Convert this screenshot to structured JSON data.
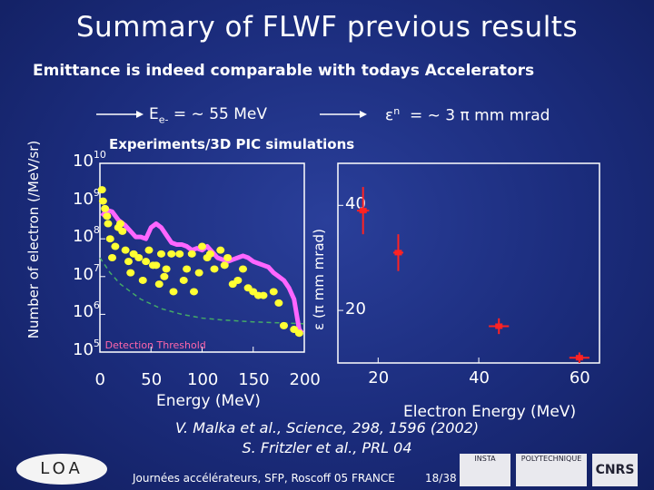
{
  "slide": {
    "title": "Summary of FLWF previous results",
    "subtitle": "Emittance is indeed comparable with todays Accelerators"
  },
  "annotations": {
    "energy_label": "E",
    "energy_sub": "e-",
    "energy_value": "= ~ 55 MeV",
    "emittance_symbol": "ε",
    "emittance_sup": "n",
    "emittance_value": "= ~ 3 π mm mrad"
  },
  "left_plot": {
    "header": "Experiments/3D PIC simulations",
    "ylabel": "Number of electron (/MeV/sr)",
    "xlabel": "Energy (MeV)",
    "y_tick_base": "10",
    "y_exponents": [
      "10",
      "9",
      "8",
      "7",
      "6",
      "5"
    ],
    "x_ticks": [
      "0",
      "50",
      "100",
      "150",
      "200"
    ],
    "threshold_label": "Detection Threshold",
    "colors": {
      "simulation": "#ff66ff",
      "experiment": "#ffff33",
      "threshold": "#44aa66",
      "frame": "#ffffff"
    }
  },
  "right_plot": {
    "ylabel": "ε (π mm mrad)",
    "xlabel": "Electron Energy (MeV)",
    "y_ticks": [
      "40",
      "20"
    ],
    "x_ticks": [
      "20",
      "40",
      "60"
    ],
    "marker_color": "#ff2222"
  },
  "chart_data": [
    {
      "type": "scatter",
      "title": "Experiments/3D PIC simulations",
      "xlabel": "Energy (MeV)",
      "ylabel": "Number of electron (/MeV/sr)",
      "xlim": [
        0,
        200
      ],
      "ylim": [
        5,
        10
      ],
      "yscale": "log10",
      "series": [
        {
          "kind": "line",
          "x": [
            2,
            5,
            8,
            12,
            18,
            25,
            30,
            35,
            40,
            45,
            50,
            55,
            60,
            65,
            70,
            75,
            80,
            85,
            90,
            95,
            100,
            105,
            110,
            115,
            120,
            125,
            130,
            135,
            140,
            145,
            150,
            155,
            160,
            165,
            170,
            175,
            180,
            185,
            190,
            195,
            198
          ],
          "y": [
            8.6,
            8.7,
            8.75,
            8.72,
            8.5,
            8.35,
            8.2,
            8.05,
            8.05,
            8.0,
            8.3,
            8.4,
            8.3,
            8.1,
            7.9,
            7.85,
            7.85,
            7.8,
            7.7,
            7.75,
            7.7,
            7.8,
            7.65,
            7.5,
            7.45,
            7.4,
            7.45,
            7.5,
            7.55,
            7.5,
            7.4,
            7.35,
            7.3,
            7.25,
            7.1,
            7.0,
            6.9,
            6.7,
            6.4,
            5.6,
            5.5
          ]
        },
        {
          "kind": "points",
          "x": [
            2,
            3,
            5,
            7,
            8,
            10,
            12,
            15,
            18,
            20,
            22,
            25,
            28,
            30,
            33,
            38,
            42,
            45,
            48,
            52,
            55,
            58,
            60,
            63,
            65,
            70,
            72,
            78,
            82,
            85,
            90,
            92,
            97,
            100,
            105,
            108,
            112,
            118,
            122,
            125,
            130,
            135,
            140,
            145,
            150,
            155,
            160,
            170,
            175,
            180,
            190,
            195
          ],
          "y": [
            9.3,
            9.0,
            8.8,
            8.6,
            8.4,
            8.0,
            7.5,
            7.8,
            8.3,
            8.4,
            8.2,
            7.7,
            7.4,
            7.1,
            7.6,
            7.5,
            6.9,
            7.4,
            7.7,
            7.3,
            7.3,
            6.8,
            7.6,
            7.0,
            7.2,
            7.6,
            6.6,
            7.6,
            6.9,
            7.2,
            7.6,
            6.6,
            7.1,
            7.8,
            7.5,
            7.6,
            7.2,
            7.7,
            7.3,
            7.5,
            6.8,
            6.9,
            7.2,
            6.7,
            6.6,
            6.5,
            6.5,
            6.6,
            6.3,
            5.7,
            5.6,
            5.5
          ]
        },
        {
          "kind": "line",
          "name": "Detection Threshold",
          "x": [
            0,
            10,
            20,
            40,
            60,
            80,
            100,
            120,
            150,
            200
          ],
          "y": [
            7.5,
            7.1,
            6.8,
            6.4,
            6.15,
            6.0,
            5.9,
            5.85,
            5.8,
            5.75
          ]
        }
      ]
    },
    {
      "type": "scatter",
      "xlabel": "Electron Energy (MeV)",
      "ylabel": "ε (π mm mrad)",
      "xlim": [
        12,
        64
      ],
      "ylim": [
        10,
        48
      ],
      "series": [
        {
          "kind": "points_with_errorbars",
          "x": [
            17,
            24,
            44,
            60
          ],
          "y": [
            39,
            31,
            17,
            11
          ],
          "yerr": [
            4.5,
            3.5,
            1.5,
            1.0
          ],
          "xerr": [
            1.2,
            1.0,
            2.0,
            2.0
          ]
        }
      ]
    }
  ]
}
